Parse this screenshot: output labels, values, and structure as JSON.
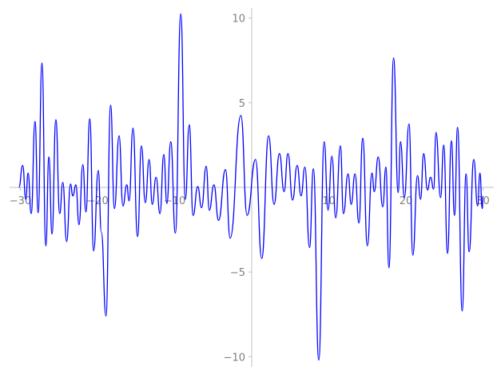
{
  "chart_data": {
    "type": "line",
    "color": "#0000ff",
    "x": [
      -30.2,
      -29.7,
      -29.3,
      -29.0,
      -28.6,
      -28.1,
      -27.7,
      -27.2,
      -26.7,
      -26.3,
      -25.9,
      -25.4,
      -24.9,
      -24.5,
      -24.0,
      -23.5,
      -23.2,
      -22.8,
      -22.4,
      -21.9,
      -21.5,
      -21.0,
      -20.5,
      -19.9,
      -19.5,
      -18.9,
      -18.3,
      -17.8,
      -17.2,
      -16.7,
      -16.2,
      -15.9,
      -15.4,
      -14.8,
      -14.3,
      -13.8,
      -13.3,
      -12.9,
      -12.4,
      -11.9,
      -11.4,
      -11.0,
      -10.5,
      -9.9,
      -9.2,
      -8.6,
      -8.1,
      -7.6,
      -7.0,
      -6.5,
      -5.9,
      -5.5,
      -4.9,
      -4.3,
      -3.4,
      -2.8,
      -1.4,
      -0.6,
      0.5,
      1.3,
      2.2,
      2.9,
      3.6,
      4.2,
      4.7,
      5.3,
      5.9,
      6.4,
      6.9,
      7.5,
      8.0,
      8.7,
      9.4,
      9.9,
      10.4,
      10.9,
      11.5,
      11.9,
      12.5,
      12.9,
      13.4,
      13.9,
      14.4,
      15.0,
      15.6,
      15.9,
      16.4,
      17.0,
      17.4,
      17.8,
      18.4,
      19.0,
      19.3,
      19.8,
      20.4,
      20.9,
      21.5,
      21.9,
      22.3,
      22.8,
      23.2,
      23.6,
      23.9,
      24.5,
      24.9,
      25.4,
      25.9,
      26.3,
      26.7,
      27.3,
      27.8,
      28.2,
      28.8,
      29.3,
      29.6,
      29.9,
      30.0
    ],
    "values": [
      0.0,
      1.3,
      -0.7,
      0.85,
      -1.55,
      3.9,
      -1.5,
      7.35,
      -3.45,
      1.8,
      -2.75,
      4.0,
      -1.55,
      0.3,
      -3.2,
      0.2,
      -0.5,
      0.15,
      -2.2,
      1.35,
      -1.45,
      4.05,
      -3.75,
      1.0,
      -2.65,
      -7.6,
      4.85,
      -1.25,
      3.05,
      -1.1,
      0.15,
      -0.8,
      3.5,
      -2.9,
      2.45,
      -0.9,
      1.65,
      -1.0,
      0.6,
      -1.55,
      1.95,
      -0.95,
      2.7,
      -2.7,
      10.25,
      -0.7,
      3.7,
      -1.65,
      0.05,
      -1.2,
      1.25,
      -1.35,
      0.15,
      -1.95,
      1.05,
      -3.0,
      4.25,
      -1.65,
      1.65,
      -4.2,
      3.05,
      -1.0,
      2.0,
      -0.25,
      2.0,
      -0.75,
      1.3,
      -0.5,
      1.2,
      -3.55,
      1.1,
      -10.2,
      2.7,
      -1.35,
      1.85,
      -1.8,
      2.45,
      -1.55,
      0.8,
      -1.0,
      0.8,
      -2.1,
      2.9,
      -3.45,
      0.85,
      -0.25,
      1.8,
      -1.15,
      1.2,
      -4.75,
      7.65,
      -0.3,
      2.7,
      -0.6,
      3.75,
      -4.0,
      0.7,
      -0.7,
      2.0,
      -0.15,
      0.6,
      -0.1,
      3.25,
      -0.6,
      2.5,
      -3.9,
      2.75,
      -1.65,
      3.55,
      -7.3,
      0.8,
      -3.8,
      1.65,
      -1.1,
      0.85,
      -1.25,
      -0.5
    ],
    "xlim": [
      -31.4,
      31.4
    ],
    "ylim": [
      -10.6,
      10.6
    ],
    "xticks": [
      {
        "value": -30,
        "label": "−30"
      },
      {
        "value": -20,
        "label": "−20"
      },
      {
        "value": -10,
        "label": "−10"
      },
      10,
      20,
      30
    ],
    "yticks": [
      {
        "value": -10,
        "label": "−10"
      },
      {
        "value": -5,
        "label": "−5"
      },
      5,
      10
    ]
  }
}
